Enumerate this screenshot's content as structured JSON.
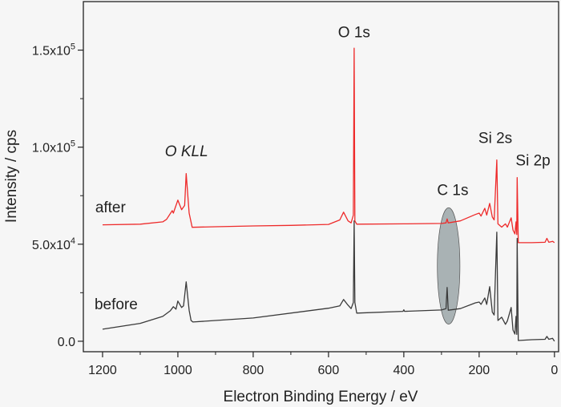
{
  "chart_data": {
    "type": "line",
    "title": "",
    "xlabel": "Electron Binding Energy / eV",
    "ylabel": "Intensity / cps",
    "xlim": [
      1251,
      -11
    ],
    "ylim": [
      -5400,
      175000
    ],
    "x_reversed": true,
    "grid": false,
    "x_ticks": [
      1200,
      1000,
      800,
      600,
      400,
      200,
      0
    ],
    "x_tick_labels": [
      "1200",
      "1000",
      "800",
      "600",
      "400",
      "200",
      "0"
    ],
    "x_minor_ticks": [
      1100,
      900,
      700,
      500,
      300,
      100
    ],
    "y_ticks": [
      0,
      50000,
      100000,
      150000
    ],
    "y_tick_labels": [
      {
        "base": "0.0",
        "exp": ""
      },
      {
        "base": "5.0x10",
        "exp": "4"
      },
      {
        "base": "1.0x10",
        "exp": "5"
      },
      {
        "base": "1.5x10",
        "exp": "5"
      }
    ],
    "y_minor_ticks": [
      25000,
      75000,
      125000
    ],
    "series": [
      {
        "name": "after",
        "color": "#ee2a2a",
        "x": [
          1200,
          1100,
          1040,
          1030,
          1015,
          1012,
          1000,
          990,
          982,
          978,
          970,
          962,
          900,
          800,
          700,
          600,
          570,
          560,
          548,
          540,
          534,
          532,
          530,
          525,
          400,
          300,
          288,
          285,
          282,
          250,
          210,
          200,
          195,
          185,
          180,
          172,
          165,
          160,
          153,
          150,
          140,
          130,
          125,
          115,
          110,
          105,
          102,
          100,
          99,
          96,
          60,
          25,
          20,
          15,
          5,
          0
        ],
        "y": [
          60000,
          60300,
          61500,
          62800,
          67300,
          66000,
          72700,
          67800,
          70000,
          86400,
          66000,
          58700,
          59000,
          59400,
          59700,
          60200,
          62500,
          66500,
          62000,
          61000,
          65000,
          151000,
          62000,
          60300,
          60500,
          60700,
          61000,
          63000,
          61000,
          62000,
          65300,
          66000,
          64500,
          68500,
          65000,
          71000,
          64000,
          62500,
          93400,
          60500,
          58800,
          60500,
          58800,
          63600,
          57300,
          55300,
          61500,
          55000,
          84300,
          50800,
          50800,
          51000,
          53000,
          51000,
          51500,
          50800
        ]
      },
      {
        "name": "before",
        "color": "#3a3a3a",
        "x": [
          1200,
          1100,
          1040,
          1020,
          1012,
          1005,
          1000,
          990,
          985,
          978,
          970,
          965,
          960,
          800,
          600,
          570,
          560,
          550,
          540,
          534,
          532,
          530,
          525,
          402,
          400,
          398,
          300,
          288,
          285,
          282,
          250,
          210,
          200,
          195,
          185,
          180,
          172,
          165,
          160,
          153,
          150,
          140,
          130,
          125,
          115,
          110,
          105,
          102,
          100,
          99,
          96,
          60,
          25,
          20,
          15,
          5,
          0
        ],
        "y": [
          6200,
          9200,
          12800,
          15700,
          17800,
          16500,
          20700,
          17400,
          18200,
          30600,
          16000,
          10700,
          9900,
          12000,
          17000,
          18200,
          21500,
          19000,
          16800,
          20000,
          62000,
          20000,
          14500,
          15400,
          16200,
          15400,
          16100,
          16800,
          27700,
          16000,
          16800,
          19800,
          20200,
          19000,
          22300,
          19000,
          28100,
          15000,
          13500,
          56200,
          10700,
          12400,
          8700,
          10500,
          17400,
          5800,
          3700,
          12800,
          3500,
          53000,
          400,
          800,
          1000,
          2500,
          1000,
          1500,
          0
        ]
      }
    ],
    "annotations": [
      {
        "text": "O 1s",
        "x": 532,
        "y": 159500,
        "italic": false
      },
      {
        "text": "O KLL",
        "x": 977,
        "y": 98300,
        "italic": true
      },
      {
        "text": "C 1s",
        "x": 270,
        "y": 78100,
        "italic": false
      },
      {
        "text": "Si 2s",
        "x": 157,
        "y": 105000,
        "italic": false
      },
      {
        "text": "Si 2p",
        "x": 57,
        "y": 93400,
        "italic": false
      },
      {
        "text": "after",
        "x": 1179,
        "y": 69400,
        "italic": false
      },
      {
        "text": "before",
        "x": 1164,
        "y": 19400,
        "italic": false
      }
    ],
    "highlight_ellipse": {
      "label": "C 1s region",
      "cx": 281,
      "cy": 38800,
      "rx_ev": 30,
      "ry_cps": 30000,
      "color": "#a9b2b4"
    }
  }
}
